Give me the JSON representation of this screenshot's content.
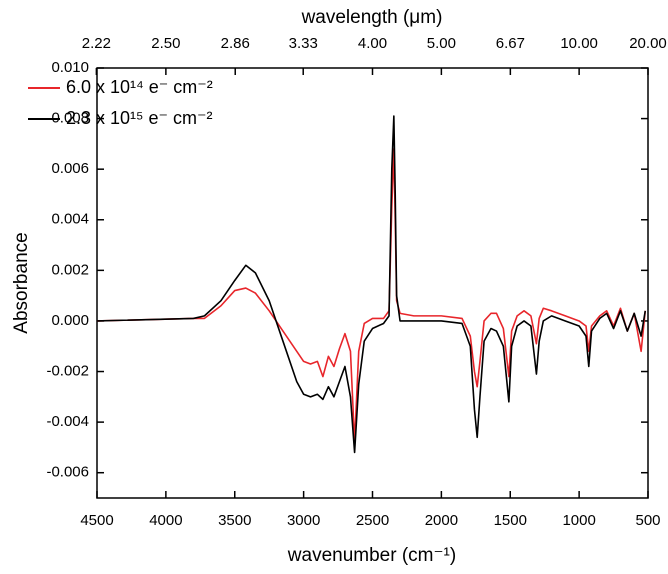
{
  "chart_data": {
    "type": "line",
    "x_label": "wavenumber (cm⁻¹)",
    "x2_label": "wavelength (μm)",
    "y_label": "Absorbance",
    "x": [
      4500,
      3800,
      3720,
      3600,
      3500,
      3420,
      3350,
      3250,
      3150,
      3050,
      3000,
      2950,
      2900,
      2860,
      2820,
      2780,
      2740,
      2700,
      2660,
      2630,
      2600,
      2560,
      2500,
      2420,
      2380,
      2360,
      2345,
      2335,
      2325,
      2300,
      2200,
      2000,
      1850,
      1790,
      1760,
      1740,
      1720,
      1690,
      1640,
      1600,
      1550,
      1510,
      1490,
      1450,
      1400,
      1350,
      1310,
      1290,
      1260,
      1200,
      1100,
      1000,
      950,
      930,
      910,
      850,
      800,
      750,
      700,
      650,
      600,
      550,
      520
    ],
    "series": [
      {
        "name": "6.0 x 10¹⁴ e⁻ cm⁻²",
        "color": "#e8262b",
        "values": [
          0.0,
          0.0001,
          0.0001,
          0.0006,
          0.0012,
          0.0013,
          0.0011,
          0.0004,
          -0.0004,
          -0.0012,
          -0.0016,
          -0.0017,
          -0.0016,
          -0.0022,
          -0.0014,
          -0.0018,
          -0.0011,
          -0.0005,
          -0.0012,
          -0.0048,
          -0.0012,
          -0.0001,
          0.0001,
          0.0001,
          0.0004,
          0.0045,
          0.0068,
          0.004,
          0.0008,
          0.0003,
          0.0002,
          0.0002,
          0.0001,
          -0.0006,
          -0.002,
          -0.0026,
          -0.0016,
          0.0,
          0.0003,
          0.0003,
          -0.0003,
          -0.0022,
          -0.0004,
          0.0002,
          0.0004,
          0.0002,
          -0.0009,
          0.0001,
          0.0005,
          0.0004,
          0.0002,
          0.0,
          -0.0002,
          -0.0012,
          -0.0002,
          0.0002,
          0.0004,
          -0.0002,
          0.0005,
          -0.0004,
          0.0003,
          -0.0012,
          0.0004
        ]
      },
      {
        "name": "2.3 x 10¹⁵ e⁻ cm⁻²",
        "color": "#000000",
        "values": [
          0.0,
          0.0001,
          0.0002,
          0.0008,
          0.0016,
          0.0022,
          0.0019,
          0.0008,
          -0.0008,
          -0.0024,
          -0.0029,
          -0.003,
          -0.0029,
          -0.0031,
          -0.0026,
          -0.003,
          -0.0024,
          -0.0018,
          -0.003,
          -0.0052,
          -0.0025,
          -0.0008,
          -0.0003,
          -0.0001,
          0.0002,
          0.006,
          0.0081,
          0.005,
          0.001,
          0.0,
          0.0,
          0.0,
          -0.0001,
          -0.001,
          -0.0035,
          -0.0046,
          -0.003,
          -0.0008,
          -0.0003,
          -0.0004,
          -0.001,
          -0.0032,
          -0.001,
          -0.0002,
          0.0,
          -0.0002,
          -0.0021,
          -0.0008,
          0.0,
          0.0002,
          0.0,
          -0.0002,
          -0.0006,
          -0.0018,
          -0.0004,
          0.0001,
          0.0003,
          -0.0003,
          0.0004,
          -0.0004,
          0.0003,
          -0.0006,
          0.0004
        ]
      }
    ],
    "xlim": [
      4500,
      500
    ],
    "xticks": [
      4500,
      4000,
      3500,
      3000,
      2500,
      2000,
      1500,
      1000,
      500
    ],
    "x2ticks": [
      2.22,
      {
        "value": 2.5,
        "label": "2.50"
      },
      2.86,
      3.33,
      {
        "value": 4,
        "label": "4.00"
      },
      {
        "value": 5,
        "label": "5.00"
      },
      6.67,
      {
        "value": 10,
        "label": "10.00"
      },
      {
        "value": 20,
        "label": "20.00"
      }
    ],
    "ylim": [
      -0.007,
      0.01
    ],
    "yticks": [
      {
        "value": 0.01,
        "label": "0.010"
      },
      0.008,
      0.006,
      0.004,
      0.002,
      {
        "value": 0,
        "label": "0.000"
      },
      -0.002,
      -0.004,
      -0.006
    ],
    "legend": "upper left"
  }
}
